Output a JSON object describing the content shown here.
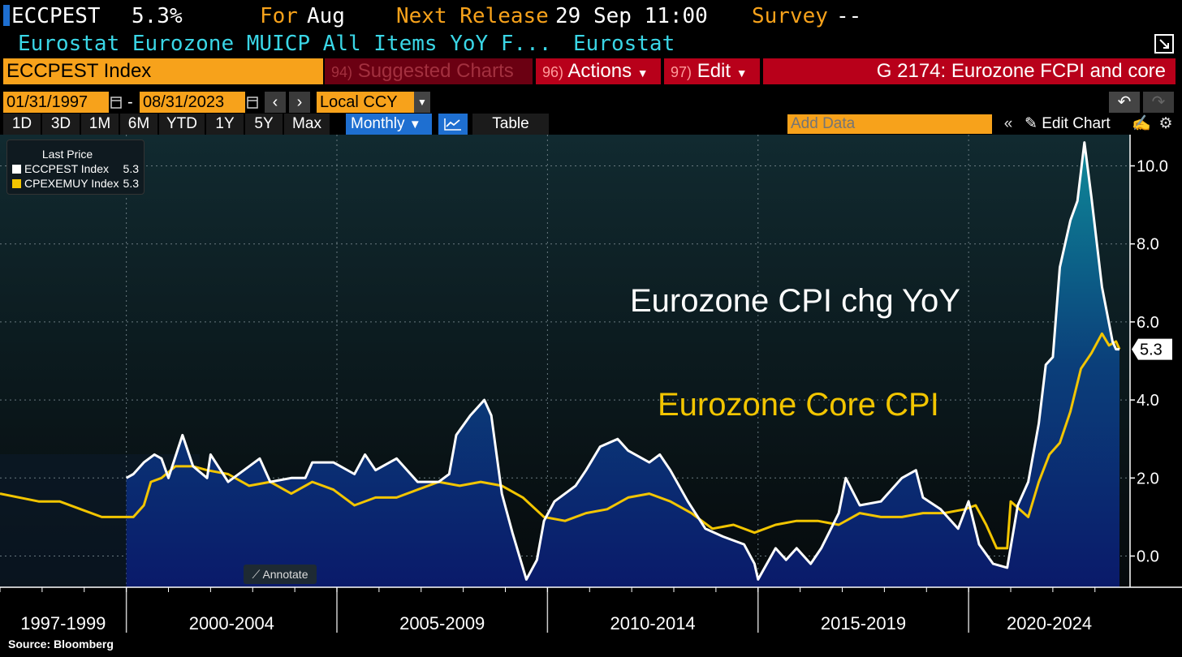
{
  "header": {
    "ticker": "ECCPEST",
    "last_value": "5.3%",
    "for_label": "For",
    "for_value": "Aug",
    "next_release_label": "Next Release",
    "next_release_value": "29 Sep 11:00",
    "survey_label": "Survey",
    "survey_value": "--",
    "description": "Eurostat Eurozone MUICP All Items YoY F...",
    "source_name": "Eurostat"
  },
  "commandbar": {
    "security": "ECCPEST Index",
    "suggested_num": "94)",
    "suggested_label": "Suggested Charts",
    "actions_num": "96)",
    "actions_label": "Actions",
    "edit_num": "97)",
    "edit_label": "Edit",
    "chart_title": "G 2174: Eurozone FCPI and core"
  },
  "controls": {
    "start_date": "01/31/1997",
    "date_sep": "-",
    "end_date": "08/31/2023",
    "currency": "Local CCY",
    "add_data_placeholder": "Add Data",
    "edit_chart_label": "Edit Chart",
    "tabs": [
      "1D",
      "3D",
      "1M",
      "6M",
      "YTD",
      "1Y",
      "5Y",
      "Max"
    ],
    "frequency": "Monthly",
    "table_label": "Table"
  },
  "legend": {
    "title": "Last Price",
    "items": [
      {
        "name": "ECCPEST Index",
        "value": "5.3",
        "color": "#ffffff"
      },
      {
        "name": "CPEXEMUY Index",
        "value": "5.3",
        "color": "#f2c500"
      }
    ]
  },
  "annotate_label": "Annotate",
  "source_text": "Source: Bloomberg",
  "colors": {
    "headline": "#ffffff",
    "core": "#f2c500",
    "accent": "#f7a21b",
    "area_top": "#0e8a99",
    "area_bottom": "#0a1a6a"
  },
  "chart_data": {
    "type": "line",
    "y_axis_side": "right",
    "ylim": [
      -0.8,
      10.8
    ],
    "yticks": [
      0,
      2,
      4,
      6,
      8,
      10
    ],
    "ytick_labels": [
      "0.0",
      "2.0",
      "4.0",
      "6.0",
      "8.0",
      "10.0"
    ],
    "xlim": [
      "1997-01",
      "2023-11"
    ],
    "period_labels": [
      "1997-1999",
      "2000-2004",
      "2005-2009",
      "2010-2014",
      "2015-2019",
      "2020-2024"
    ],
    "last_value_label": "5.3",
    "grid": true,
    "annotations": [
      "Eurozone CPI chg YoY",
      "Eurozone Core CPI"
    ],
    "series": [
      {
        "name": "ECCPEST Index",
        "color": "#ffffff",
        "fill": true,
        "points": [
          [
            "2000-01",
            2.0
          ],
          [
            "2000-03",
            2.1
          ],
          [
            "2000-06",
            2.4
          ],
          [
            "2000-09",
            2.6
          ],
          [
            "2000-11",
            2.5
          ],
          [
            "2001-01",
            2.0
          ],
          [
            "2001-05",
            3.1
          ],
          [
            "2001-08",
            2.3
          ],
          [
            "2001-12",
            2.0
          ],
          [
            "2002-01",
            2.6
          ],
          [
            "2002-06",
            1.9
          ],
          [
            "2002-12",
            2.3
          ],
          [
            "2003-03",
            2.5
          ],
          [
            "2003-06",
            1.9
          ],
          [
            "2003-12",
            2.0
          ],
          [
            "2004-04",
            2.0
          ],
          [
            "2004-06",
            2.4
          ],
          [
            "2004-12",
            2.4
          ],
          [
            "2005-06",
            2.1
          ],
          [
            "2005-09",
            2.6
          ],
          [
            "2005-12",
            2.2
          ],
          [
            "2006-06",
            2.5
          ],
          [
            "2006-12",
            1.9
          ],
          [
            "2007-06",
            1.9
          ],
          [
            "2007-09",
            2.1
          ],
          [
            "2007-11",
            3.1
          ],
          [
            "2008-03",
            3.6
          ],
          [
            "2008-07",
            4.0
          ],
          [
            "2008-09",
            3.6
          ],
          [
            "2008-12",
            1.6
          ],
          [
            "2009-03",
            0.6
          ],
          [
            "2009-07",
            -0.6
          ],
          [
            "2009-10",
            -0.1
          ],
          [
            "2009-12",
            0.9
          ],
          [
            "2010-03",
            1.4
          ],
          [
            "2010-09",
            1.8
          ],
          [
            "2010-12",
            2.2
          ],
          [
            "2011-04",
            2.8
          ],
          [
            "2011-09",
            3.0
          ],
          [
            "2011-12",
            2.7
          ],
          [
            "2012-06",
            2.4
          ],
          [
            "2012-09",
            2.6
          ],
          [
            "2012-12",
            2.2
          ],
          [
            "2013-05",
            1.4
          ],
          [
            "2013-10",
            0.7
          ],
          [
            "2014-03",
            0.5
          ],
          [
            "2014-09",
            0.3
          ],
          [
            "2014-12",
            -0.2
          ],
          [
            "2015-01",
            -0.6
          ],
          [
            "2015-06",
            0.2
          ],
          [
            "2015-09",
            -0.1
          ],
          [
            "2015-12",
            0.2
          ],
          [
            "2016-04",
            -0.2
          ],
          [
            "2016-07",
            0.2
          ],
          [
            "2016-12",
            1.1
          ],
          [
            "2017-02",
            2.0
          ],
          [
            "2017-06",
            1.3
          ],
          [
            "2017-12",
            1.4
          ],
          [
            "2018-06",
            2.0
          ],
          [
            "2018-10",
            2.2
          ],
          [
            "2018-12",
            1.5
          ],
          [
            "2019-05",
            1.2
          ],
          [
            "2019-10",
            0.7
          ],
          [
            "2020-01",
            1.4
          ],
          [
            "2020-04",
            0.3
          ],
          [
            "2020-08",
            -0.2
          ],
          [
            "2020-12",
            -0.3
          ],
          [
            "2021-03",
            1.3
          ],
          [
            "2021-06",
            1.9
          ],
          [
            "2021-09",
            3.4
          ],
          [
            "2021-11",
            4.9
          ],
          [
            "2022-01",
            5.1
          ],
          [
            "2022-03",
            7.4
          ],
          [
            "2022-06",
            8.6
          ],
          [
            "2022-08",
            9.1
          ],
          [
            "2022-10",
            10.6
          ],
          [
            "2022-12",
            9.2
          ],
          [
            "2023-03",
            6.9
          ],
          [
            "2023-06",
            5.5
          ],
          [
            "2023-07",
            5.3
          ],
          [
            "2023-08",
            5.3
          ]
        ]
      },
      {
        "name": "CPEXEMUY Index",
        "color": "#f2c500",
        "fill": false,
        "points": [
          [
            "1997-01",
            1.6
          ],
          [
            "1997-12",
            1.4
          ],
          [
            "1998-06",
            1.4
          ],
          [
            "1998-12",
            1.2
          ],
          [
            "1999-06",
            1.0
          ],
          [
            "1999-12",
            1.0
          ],
          [
            "2000-03",
            1.0
          ],
          [
            "2000-06",
            1.3
          ],
          [
            "2000-08",
            1.9
          ],
          [
            "2000-11",
            2.0
          ],
          [
            "2001-03",
            2.3
          ],
          [
            "2001-08",
            2.3
          ],
          [
            "2001-12",
            2.2
          ],
          [
            "2002-06",
            2.1
          ],
          [
            "2002-12",
            1.8
          ],
          [
            "2003-06",
            1.9
          ],
          [
            "2003-12",
            1.6
          ],
          [
            "2004-06",
            1.9
          ],
          [
            "2004-12",
            1.7
          ],
          [
            "2005-06",
            1.3
          ],
          [
            "2005-12",
            1.5
          ],
          [
            "2006-06",
            1.5
          ],
          [
            "2006-12",
            1.7
          ],
          [
            "2007-06",
            1.9
          ],
          [
            "2007-12",
            1.8
          ],
          [
            "2008-06",
            1.9
          ],
          [
            "2008-12",
            1.8
          ],
          [
            "2009-06",
            1.5
          ],
          [
            "2009-12",
            1.0
          ],
          [
            "2010-06",
            0.9
          ],
          [
            "2010-12",
            1.1
          ],
          [
            "2011-06",
            1.2
          ],
          [
            "2011-12",
            1.5
          ],
          [
            "2012-06",
            1.6
          ],
          [
            "2012-12",
            1.4
          ],
          [
            "2013-06",
            1.1
          ],
          [
            "2013-12",
            0.7
          ],
          [
            "2014-06",
            0.8
          ],
          [
            "2014-12",
            0.6
          ],
          [
            "2015-06",
            0.8
          ],
          [
            "2015-12",
            0.9
          ],
          [
            "2016-06",
            0.9
          ],
          [
            "2016-12",
            0.8
          ],
          [
            "2017-06",
            1.1
          ],
          [
            "2017-12",
            1.0
          ],
          [
            "2018-06",
            1.0
          ],
          [
            "2018-12",
            1.1
          ],
          [
            "2019-06",
            1.1
          ],
          [
            "2019-12",
            1.2
          ],
          [
            "2020-03",
            1.3
          ],
          [
            "2020-06",
            0.8
          ],
          [
            "2020-09",
            0.2
          ],
          [
            "2020-12",
            0.2
          ],
          [
            "2021-01",
            1.4
          ],
          [
            "2021-06",
            1.0
          ],
          [
            "2021-09",
            1.9
          ],
          [
            "2021-12",
            2.6
          ],
          [
            "2022-03",
            2.9
          ],
          [
            "2022-06",
            3.7
          ],
          [
            "2022-09",
            4.8
          ],
          [
            "2022-12",
            5.2
          ],
          [
            "2023-03",
            5.7
          ],
          [
            "2023-05",
            5.4
          ],
          [
            "2023-07",
            5.5
          ],
          [
            "2023-08",
            5.3
          ]
        ]
      }
    ]
  }
}
